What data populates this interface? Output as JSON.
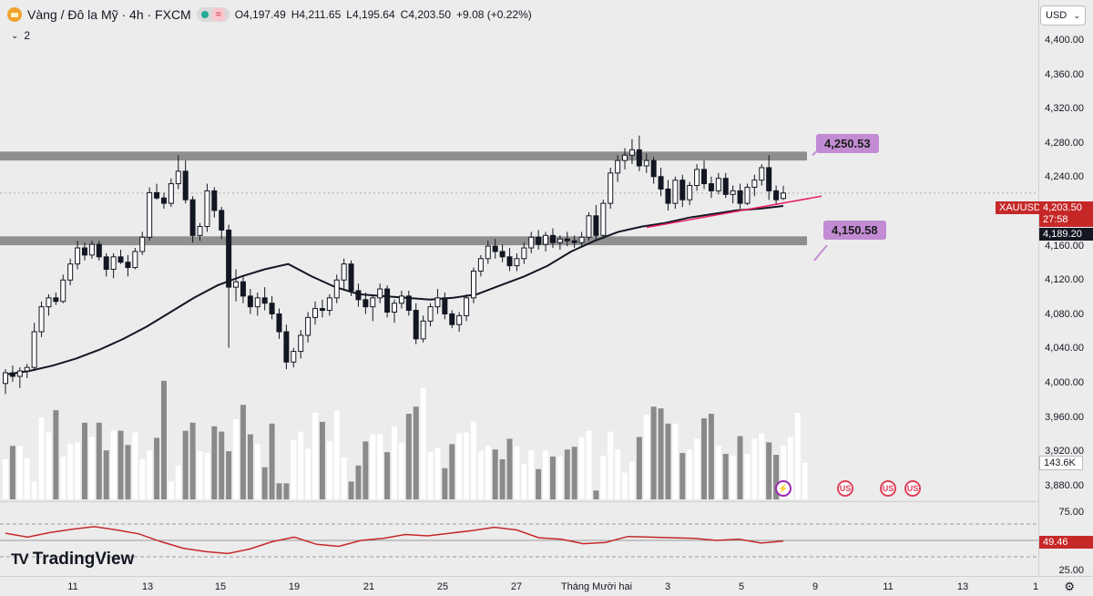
{
  "header": {
    "title": "Vàng / Đô la Mỹ · 4h · FXCM",
    "ohlc": [
      {
        "k": "O",
        "v": "4,197.49"
      },
      {
        "k": "H",
        "v": "4,211.65"
      },
      {
        "k": "L",
        "v": "4,195.64"
      },
      {
        "k": "C",
        "v": "4,203.50"
      }
    ],
    "change": "+9.08 (+0.22%)",
    "indicator_count": "2",
    "currency": "USD"
  },
  "price_axis": {
    "labels": [
      "4,400.00",
      "4,360.00",
      "4,320.00",
      "4,280.00",
      "4,240.00",
      "4,200.00",
      "4,160.00",
      "4,120.00",
      "4,080.00",
      "4,040.00",
      "4,000.00",
      "3,960.00",
      "3,920.00",
      "3,880.00"
    ],
    "symbol_tag": "XAUUSD",
    "last_price": "4,203.50",
    "countdown": "27:58",
    "ma_price": "4,189.20",
    "volume_tag": "143.6K"
  },
  "rsi_axis": {
    "labels": [
      "75.00",
      "25.00"
    ],
    "value": "49.46"
  },
  "annotations": {
    "upper_callout": "4,250.53",
    "lower_callout": "4,150.58"
  },
  "time_axis": {
    "labels": [
      "11",
      "13",
      "15",
      "19",
      "21",
      "25",
      "27",
      "Tháng Mười hai",
      "3",
      "5",
      "9",
      "11",
      "13",
      "1"
    ]
  },
  "brand": "TradingView",
  "colors": {
    "bull": "#ffffff",
    "bear": "#131722",
    "ma": "#131722",
    "trendline": "#e91e63",
    "rsi": "#c62828",
    "zone": "#8f8f8f",
    "callout": "#c28bd3"
  },
  "chart_data": {
    "type": "candlestick",
    "timeframe": "4h",
    "y_range": [
      3860,
      4420
    ],
    "candles": [
      [
        3990,
        4006,
        3978,
        4002
      ],
      [
        4002,
        4010,
        3992,
        3998
      ],
      [
        3998,
        4008,
        3985,
        4004
      ],
      [
        4004,
        4012,
        3996,
        4008
      ],
      [
        4008,
        4058,
        4004,
        4048
      ],
      [
        4048,
        4082,
        4042,
        4076
      ],
      [
        4076,
        4090,
        4066,
        4086
      ],
      [
        4086,
        4092,
        4078,
        4082
      ],
      [
        4082,
        4112,
        4080,
        4106
      ],
      [
        4106,
        4130,
        4100,
        4124
      ],
      [
        4124,
        4150,
        4118,
        4142
      ],
      [
        4142,
        4148,
        4128,
        4134
      ],
      [
        4134,
        4150,
        4130,
        4146
      ],
      [
        4146,
        4150,
        4128,
        4132
      ],
      [
        4132,
        4136,
        4110,
        4118
      ],
      [
        4118,
        4136,
        4108,
        4132
      ],
      [
        4132,
        4140,
        4124,
        4126
      ],
      [
        4126,
        4134,
        4110,
        4120
      ],
      [
        4120,
        4142,
        4118,
        4138
      ],
      [
        4138,
        4160,
        4134,
        4154
      ],
      [
        4154,
        4210,
        4150,
        4204
      ],
      [
        4204,
        4214,
        4196,
        4198
      ],
      [
        4198,
        4204,
        4186,
        4192
      ],
      [
        4192,
        4220,
        4188,
        4214
      ],
      [
        4214,
        4246,
        4208,
        4228
      ],
      [
        4228,
        4240,
        4192,
        4196
      ],
      [
        4196,
        4200,
        4148,
        4156
      ],
      [
        4156,
        4170,
        4150,
        4166
      ],
      [
        4166,
        4214,
        4160,
        4206
      ],
      [
        4206,
        4210,
        4176,
        4184
      ],
      [
        4184,
        4188,
        4152,
        4162
      ],
      [
        4162,
        4168,
        4030,
        4098
      ],
      [
        4098,
        4118,
        4082,
        4104
      ],
      [
        4104,
        4110,
        4080,
        4088
      ],
      [
        4088,
        4096,
        4068,
        4076
      ],
      [
        4076,
        4092,
        4066,
        4086
      ],
      [
        4086,
        4098,
        4072,
        4080
      ],
      [
        4080,
        4088,
        4062,
        4068
      ],
      [
        4068,
        4074,
        4040,
        4048
      ],
      [
        4048,
        4056,
        4006,
        4014
      ],
      [
        4014,
        4030,
        4008,
        4026
      ],
      [
        4026,
        4050,
        4018,
        4044
      ],
      [
        4044,
        4070,
        4036,
        4064
      ],
      [
        4064,
        4082,
        4056,
        4074
      ],
      [
        4074,
        4084,
        4064,
        4072
      ],
      [
        4072,
        4090,
        4066,
        4086
      ],
      [
        4086,
        4112,
        4080,
        4106
      ],
      [
        4106,
        4130,
        4096,
        4124
      ],
      [
        4124,
        4128,
        4088,
        4094
      ],
      [
        4094,
        4102,
        4076,
        4084
      ],
      [
        4084,
        4092,
        4068,
        4076
      ],
      [
        4076,
        4090,
        4060,
        4086
      ],
      [
        4086,
        4102,
        4080,
        4096
      ],
      [
        4096,
        4100,
        4064,
        4070
      ],
      [
        4070,
        4084,
        4058,
        4080
      ],
      [
        4080,
        4094,
        4074,
        4088
      ],
      [
        4088,
        4094,
        4066,
        4072
      ],
      [
        4072,
        4080,
        4034,
        4040
      ],
      [
        4040,
        4066,
        4036,
        4060
      ],
      [
        4060,
        4080,
        4054,
        4076
      ],
      [
        4076,
        4096,
        4068,
        4086
      ],
      [
        4086,
        4092,
        4062,
        4068
      ],
      [
        4068,
        4072,
        4052,
        4056
      ],
      [
        4056,
        4070,
        4048,
        4066
      ],
      [
        4066,
        4090,
        4060,
        4086
      ],
      [
        4086,
        4120,
        4080,
        4116
      ],
      [
        4116,
        4134,
        4110,
        4130
      ],
      [
        4130,
        4150,
        4124,
        4144
      ],
      [
        4144,
        4152,
        4130,
        4138
      ],
      [
        4138,
        4146,
        4126,
        4132
      ],
      [
        4132,
        4142,
        4116,
        4122
      ],
      [
        4122,
        4136,
        4116,
        4130
      ],
      [
        4130,
        4148,
        4124,
        4142
      ],
      [
        4142,
        4160,
        4136,
        4154
      ],
      [
        4154,
        4162,
        4140,
        4146
      ],
      [
        4146,
        4160,
        4138,
        4156
      ],
      [
        4156,
        4164,
        4142,
        4148
      ],
      [
        4148,
        4156,
        4140,
        4152
      ],
      [
        4152,
        4160,
        4144,
        4150
      ],
      [
        4150,
        4156,
        4142,
        4148
      ],
      [
        4148,
        4160,
        4144,
        4154
      ],
      [
        4154,
        4182,
        4150,
        4178
      ],
      [
        4178,
        4190,
        4150,
        4156
      ],
      [
        4156,
        4196,
        4152,
        4192
      ],
      [
        4192,
        4232,
        4186,
        4226
      ],
      [
        4226,
        4246,
        4216,
        4240
      ],
      [
        4240,
        4254,
        4230,
        4246
      ],
      [
        4246,
        4264,
        4236,
        4252
      ],
      [
        4252,
        4268,
        4228,
        4234
      ],
      [
        4234,
        4248,
        4226,
        4240
      ],
      [
        4240,
        4244,
        4214,
        4222
      ],
      [
        4222,
        4232,
        4200,
        4208
      ],
      [
        4208,
        4218,
        4184,
        4192
      ],
      [
        4192,
        4222,
        4186,
        4218
      ],
      [
        4218,
        4224,
        4188,
        4196
      ],
      [
        4196,
        4216,
        4190,
        4212
      ],
      [
        4212,
        4236,
        4206,
        4230
      ],
      [
        4230,
        4240,
        4208,
        4214
      ],
      [
        4214,
        4222,
        4198,
        4206
      ],
      [
        4206,
        4226,
        4202,
        4220
      ],
      [
        4220,
        4226,
        4198,
        4202
      ],
      [
        4202,
        4212,
        4192,
        4206
      ],
      [
        4206,
        4214,
        4186,
        4192
      ],
      [
        4192,
        4214,
        4190,
        4210
      ],
      [
        4210,
        4224,
        4200,
        4218
      ],
      [
        4218,
        4236,
        4212,
        4232
      ],
      [
        4232,
        4246,
        4196,
        4206
      ],
      [
        4206,
        4212,
        4190,
        4196
      ],
      [
        4197.49,
        4211.65,
        4195.64,
        4203.5
      ]
    ],
    "volumes": [
      3905,
      3920,
      3920,
      3906,
      3880,
      3952,
      3935,
      3960,
      3908,
      3922,
      3924,
      3946,
      3930,
      3946,
      3915,
      3937,
      3937,
      3921,
      3935,
      3905,
      3915,
      3929,
      3993,
      3880,
      3898,
      3937,
      3946,
      3914,
      3912,
      3942,
      3936,
      3914,
      3950,
      3966,
      3933,
      3922,
      3896,
      3945,
      3878,
      3878,
      3927,
      3936,
      3917,
      3957,
      3947,
      3925,
      3959,
      3907,
      3880,
      3898,
      3925,
      3933,
      3933,
      3913,
      3942,
      3923,
      3956,
      3964,
      3985,
      3913,
      3918,
      3895,
      3922,
      3934,
      3935,
      3947,
      3914,
      3920,
      3916,
      3905,
      3928,
      3919,
      3900,
      3915,
      3894,
      3915,
      3908,
      3908,
      3916,
      3919,
      3930,
      3937,
      3870,
      3909,
      3936,
      3916,
      3890,
      3902,
      3930,
      3955,
      3964,
      3962,
      3945,
      3945,
      3912,
      3916,
      3928,
      3951,
      3956,
      3920,
      3911,
      3909,
      3931,
      3911,
      3928,
      3934,
      3924,
      3910,
      3920,
      3930,
      3957,
      3901
    ],
    "ma_line": [
      4000,
      4004,
      4010,
      4018,
      4028,
      4040,
      4054,
      4070,
      4086,
      4100,
      4110,
      4118,
      4124,
      4110,
      4098,
      4090,
      4088,
      4086,
      4084,
      4086,
      4090,
      4100,
      4110,
      4122,
      4138,
      4150,
      4160,
      4166,
      4170,
      4176,
      4180,
      4184,
      4186,
      4189
    ],
    "rsi": [
      61,
      55,
      62,
      67,
      71,
      66,
      60,
      48,
      38,
      33,
      30,
      37,
      48,
      55,
      44,
      41,
      50,
      53,
      59,
      57,
      61,
      65,
      70,
      66,
      54,
      52,
      45,
      47,
      56,
      55,
      54,
      53,
      50,
      52,
      46,
      49
    ],
    "zones": [
      [
        4240,
        4250
      ],
      [
        4145,
        4155
      ]
    ],
    "trendline": [
      [
        4165,
        4200
      ]
    ]
  }
}
